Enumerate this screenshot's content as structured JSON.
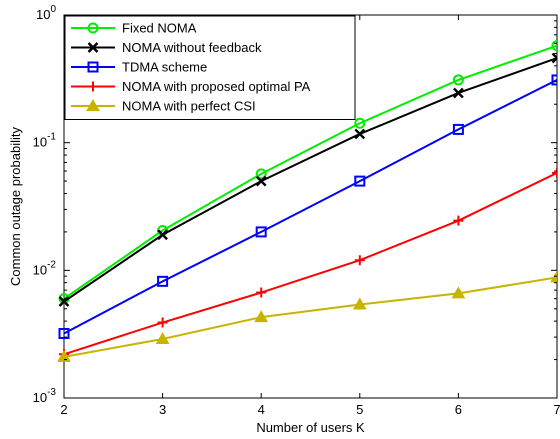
{
  "chart_data": {
    "type": "line",
    "title": "",
    "xlabel": "Number of users K",
    "ylabel": "Common outage probability",
    "x": [
      2,
      3,
      4,
      5,
      6,
      7
    ],
    "xlim": [
      2,
      7
    ],
    "ylim": [
      0.001,
      1
    ],
    "yscale": "log",
    "grid": true,
    "legend_position": "top-left",
    "x_ticks": [
      "2",
      "3",
      "4",
      "5",
      "6",
      "7"
    ],
    "y_ticks": [
      {
        "base": "10",
        "exp": "-3",
        "value": 0.001
      },
      {
        "base": "10",
        "exp": "-2",
        "value": 0.01
      },
      {
        "base": "10",
        "exp": "-1",
        "value": 0.1
      },
      {
        "base": "10",
        "exp": "0",
        "value": 1
      }
    ],
    "series": [
      {
        "name": "Fixed NOMA",
        "color": "#00ee00",
        "marker": "circle",
        "values": [
          0.006,
          0.0205,
          0.057,
          0.142,
          0.31,
          0.575
        ]
      },
      {
        "name": "NOMA without feedback",
        "color": "#000000",
        "marker": "x",
        "values": [
          0.0057,
          0.019,
          0.05,
          0.117,
          0.245,
          0.46
        ]
      },
      {
        "name": "TDMA scheme",
        "color": "#0000ff",
        "marker": "square",
        "values": [
          0.0032,
          0.0082,
          0.02,
          0.05,
          0.127,
          0.31
        ]
      },
      {
        "name": "NOMA with proposed optimal PA",
        "color": "#ff0000",
        "marker": "plus",
        "values": [
          0.0022,
          0.0039,
          0.0067,
          0.012,
          0.0245,
          0.058
        ]
      },
      {
        "name": "NOMA with perfect CSI",
        "color": "#c8b400",
        "marker": "triangle",
        "values": [
          0.0021,
          0.0029,
          0.0043,
          0.0054,
          0.0066,
          0.0088
        ]
      }
    ]
  }
}
